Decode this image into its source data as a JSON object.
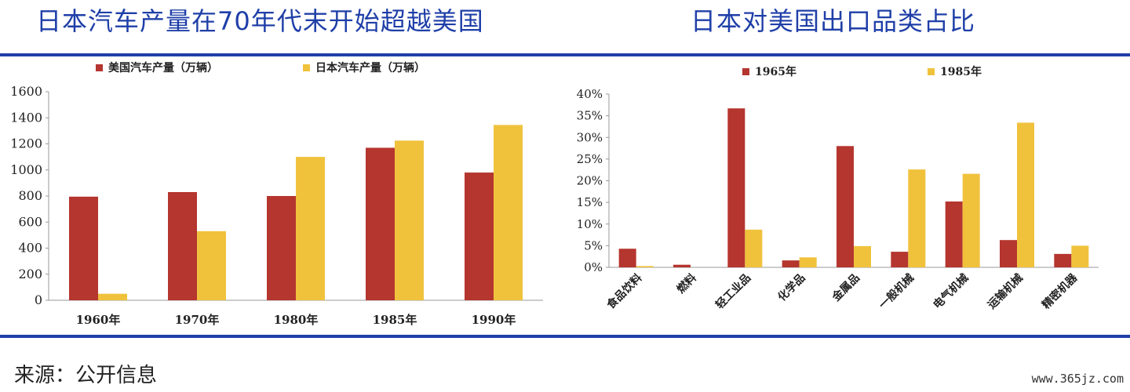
{
  "left_title": "日本汽车产量在70年代末开始超越美国",
  "right_title": "日本对美国出口品类占比",
  "source": "来源：公开信息",
  "watermark": "www.365jz.com",
  "colors": {
    "series_a": "#b5352f",
    "series_b": "#f0c23c",
    "accent": "#1f3fa8"
  },
  "chart_data": [
    {
      "type": "bar",
      "title": "日本汽车产量在70年代末开始超越美国",
      "categories": [
        "1960年",
        "1970年",
        "1980年",
        "1985年",
        "1990年"
      ],
      "series": [
        {
          "name": "美国汽车产量（万辆）",
          "values": [
            795,
            830,
            800,
            1170,
            980
          ]
        },
        {
          "name": "日本汽车产量（万辆）",
          "values": [
            50,
            530,
            1100,
            1225,
            1345
          ]
        }
      ],
      "ylim": [
        0,
        1600
      ],
      "yticks": [
        "0",
        "200",
        "400",
        "600",
        "800",
        "1000",
        "1200",
        "1400",
        "1600"
      ],
      "grid": false,
      "legend": "top"
    },
    {
      "type": "bar",
      "title": "日本对美国出口品类占比",
      "categories": [
        "食品饮料",
        "燃料",
        "轻工业品",
        "化学品",
        "金属品",
        "一般机械",
        "电气机械",
        "运输机械",
        "精密机器"
      ],
      "series": [
        {
          "name": "1965年",
          "values": [
            4.3,
            0.6,
            36.7,
            1.6,
            28.0,
            3.6,
            15.2,
            6.3,
            3.1
          ]
        },
        {
          "name": "1985年",
          "values": [
            0.3,
            0.0,
            8.7,
            2.3,
            4.9,
            22.6,
            21.6,
            33.4,
            5.0
          ]
        }
      ],
      "ylim": [
        0,
        40
      ],
      "yticks": [
        "0%",
        "5%",
        "10%",
        "15%",
        "20%",
        "25%",
        "30%",
        "35%",
        "40%"
      ],
      "grid": false,
      "legend": "top"
    }
  ]
}
